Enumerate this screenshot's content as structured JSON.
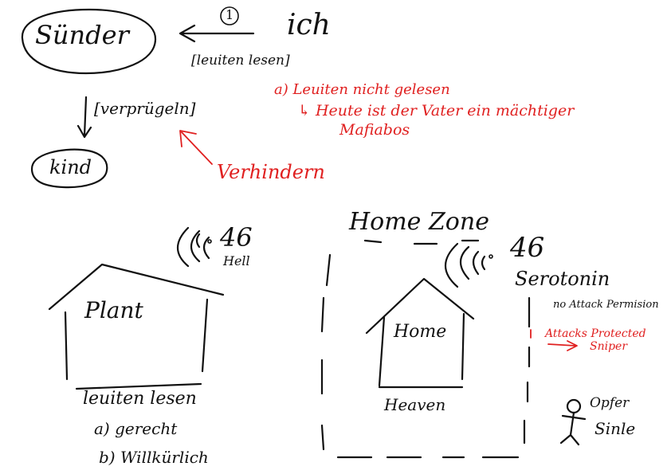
{
  "colors": {
    "ink": "#111111",
    "accent": "#e02020",
    "background": "#ffffff"
  },
  "top": {
    "suender": "Sünder",
    "step_number": "1",
    "ich": "ich",
    "arrow_label": "[leuiten lesen]",
    "down_label": "[verprügeln]",
    "kind": "kind",
    "note_a": "a) Leuiten nicht gelesen",
    "note_b": "↳ Heute ist der Vater ein mächtiger",
    "note_c": "Mafiabos",
    "verhindern": "Verhindern"
  },
  "left_house": {
    "signal_number": "46",
    "signal_label": "Hell",
    "label": "Plant",
    "caption": "leuiten lesen",
    "option_a": "a) gerecht",
    "option_b": "b) Willkürlich"
  },
  "right_zone": {
    "zone_title": "Home Zone",
    "signal_number": "46",
    "signal_label": "Serotonin",
    "house_label": "Home",
    "heaven": "Heaven",
    "no_attack": "no Attack Permision",
    "attacks_protected": "Attacks Protected",
    "sniper": "Sniper",
    "opfer": "Opfer",
    "sinle": "Sinle"
  }
}
